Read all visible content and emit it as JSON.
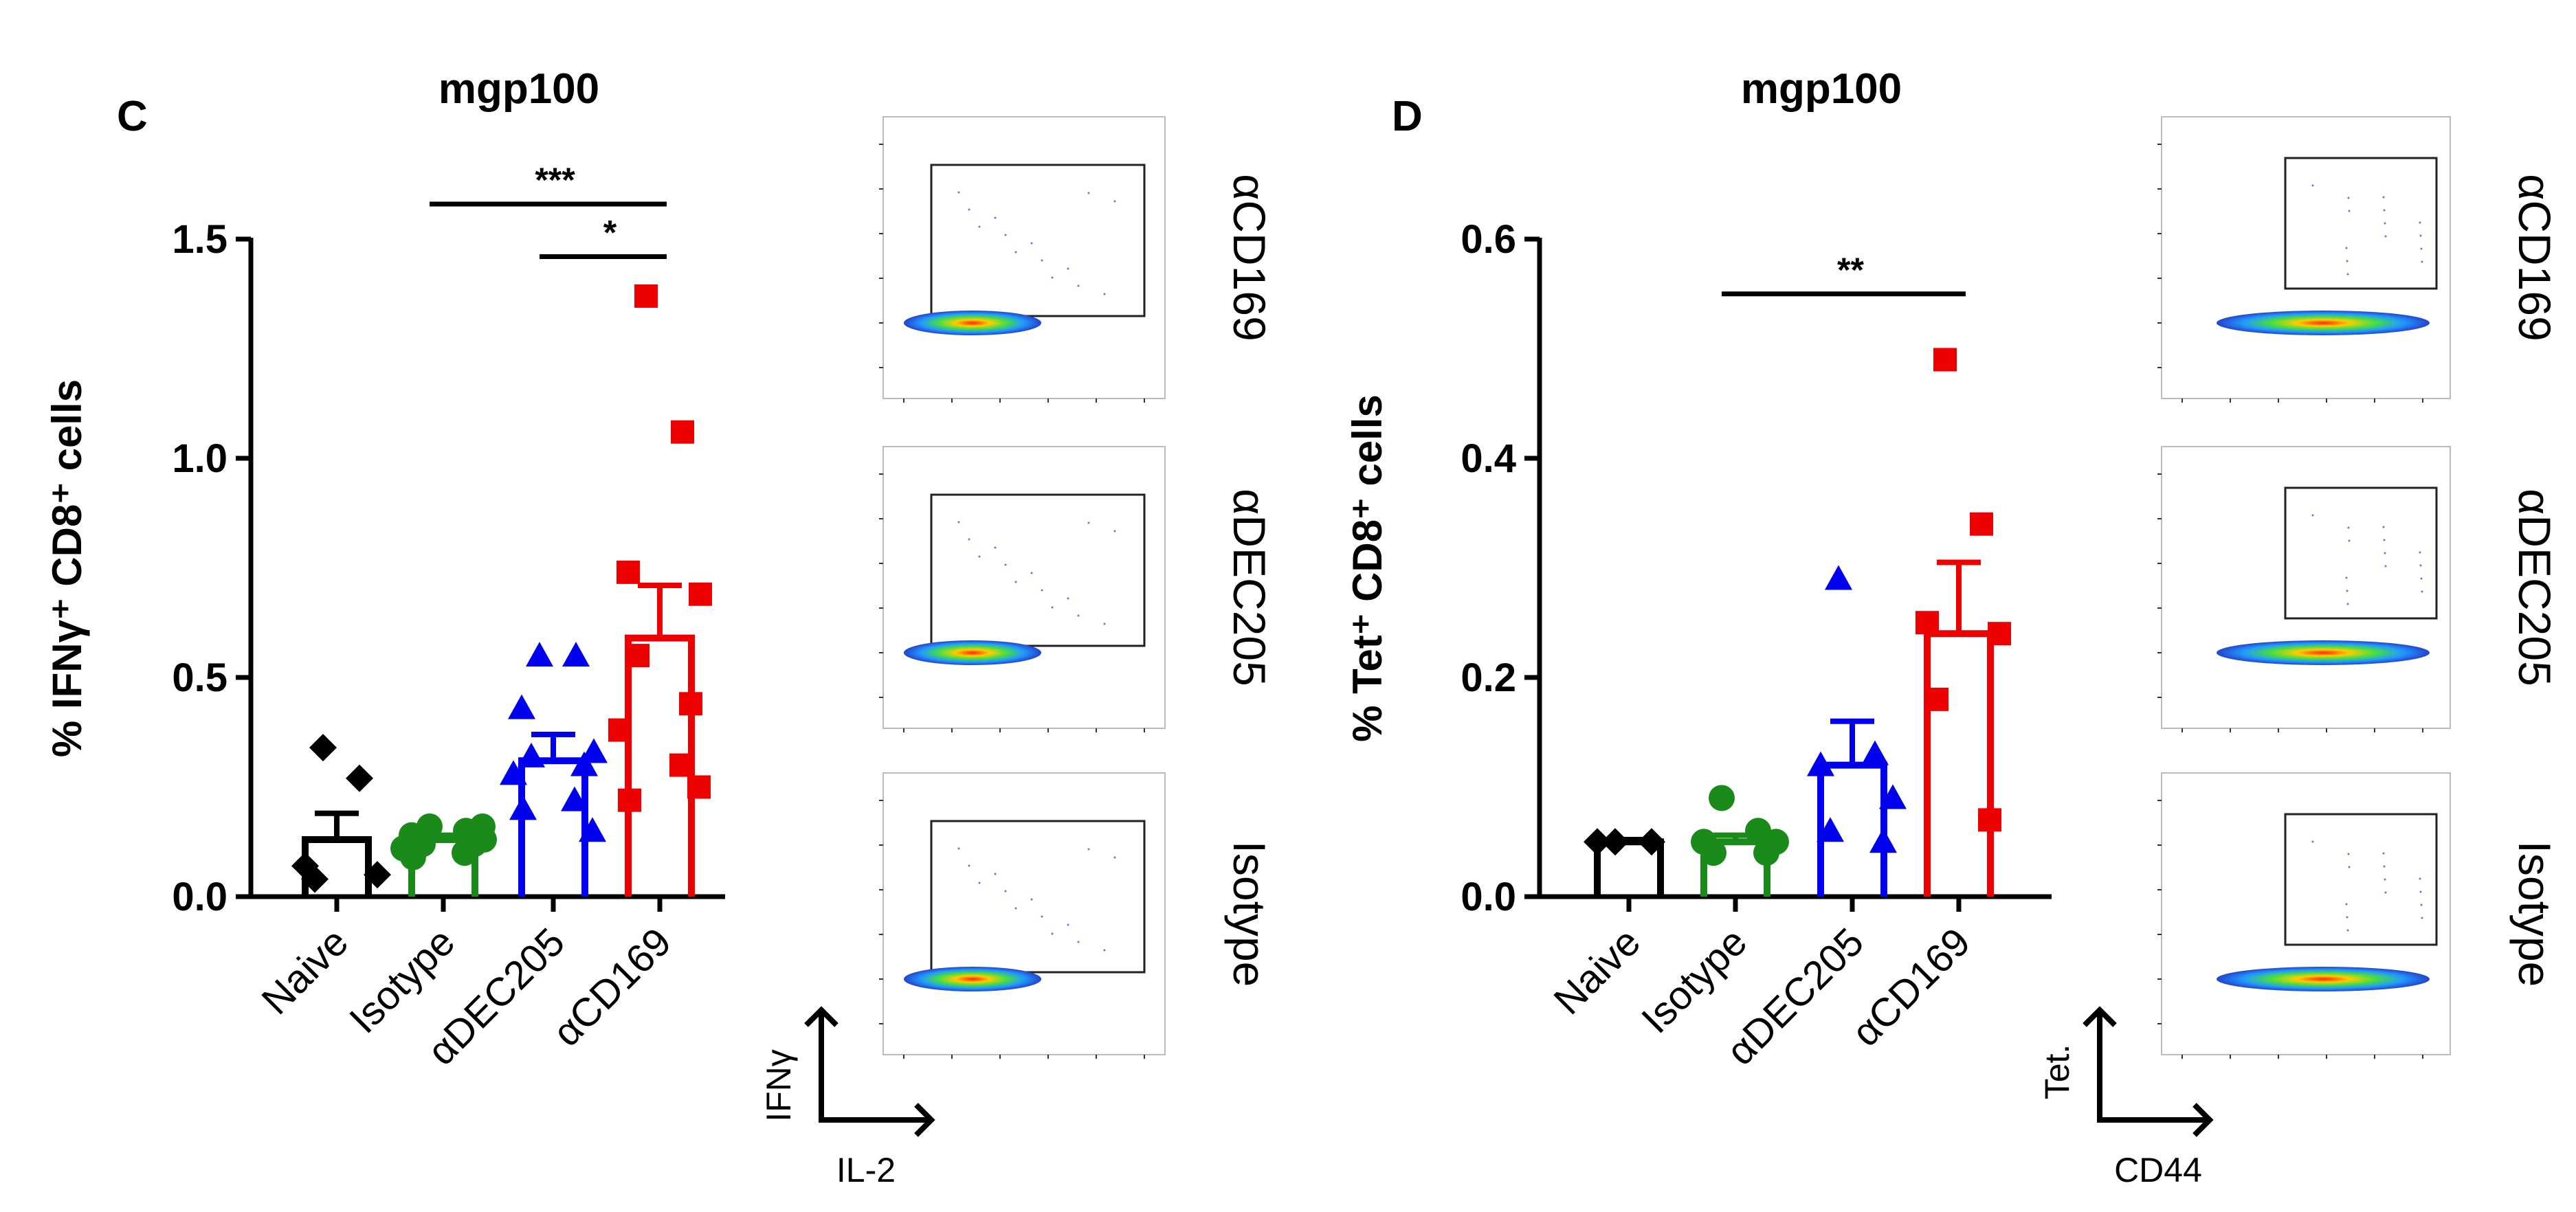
{
  "chart_data": [
    {
      "panel": "C",
      "type": "bar",
      "title": "mgp100",
      "ylabel": "% IFNγ⁺ CD8⁺ cells",
      "xlabel": "",
      "ylim": [
        0,
        1.5
      ],
      "yticks": [
        "0.0",
        "0.5",
        "1.0",
        "1.5"
      ],
      "categories": [
        "Naive",
        "Isotype",
        "αDEC205",
        "αCD169"
      ],
      "colors": [
        "#000000",
        "#1a8a1a",
        "#0000ee",
        "#ee0000"
      ],
      "markers": [
        "diamond",
        "circle",
        "triangle",
        "square"
      ],
      "means": [
        0.13,
        0.13,
        0.31,
        0.59
      ],
      "sem": [
        0.06,
        0.01,
        0.06,
        0.12
      ],
      "points": [
        [
          0.34,
          0.27,
          0.07,
          0.05,
          0.04
        ],
        [
          0.16,
          0.15,
          0.14,
          0.13,
          0.12,
          0.12,
          0.11,
          0.1,
          0.09,
          0.16,
          0.12
        ],
        [
          0.55,
          0.55,
          0.43,
          0.33,
          0.32,
          0.3,
          0.28,
          0.22,
          0.2,
          0.15
        ],
        [
          1.37,
          1.06,
          0.74,
          0.69,
          0.55,
          0.44,
          0.38,
          0.3,
          0.22,
          0.25
        ]
      ],
      "significance": [
        {
          "from": 1,
          "to": 3,
          "label": "***",
          "y": 1.58
        },
        {
          "from": 2,
          "to": 3,
          "label": "*",
          "y": 1.46
        }
      ],
      "flow": {
        "panels": [
          "αCD169",
          "αDEC205",
          "Isotype"
        ],
        "x_axis": "IL-2",
        "y_axis": "IFNγ"
      }
    },
    {
      "panel": "D",
      "type": "bar",
      "title": "mgp100",
      "ylabel": "% Tet⁺ CD8⁺ cells",
      "xlabel": "",
      "ylim": [
        0,
        0.6
      ],
      "yticks": [
        "0.0",
        "0.2",
        "0.4",
        "0.6"
      ],
      "categories": [
        "Naive",
        "Isotype",
        "αDEC205",
        "αCD169"
      ],
      "colors": [
        "#000000",
        "#1a8a1a",
        "#0000ee",
        "#ee0000"
      ],
      "markers": [
        "diamond",
        "circle",
        "triangle",
        "square"
      ],
      "means": [
        0.05,
        0.05,
        0.12,
        0.24
      ],
      "sem": [
        0.002,
        0.006,
        0.04,
        0.065
      ],
      "points": [
        [
          0.05,
          0.05,
          0.05
        ],
        [
          0.09,
          0.06,
          0.05,
          0.05,
          0.04,
          0.04
        ],
        [
          0.29,
          0.13,
          0.12,
          0.09,
          0.06,
          0.05
        ],
        [
          0.49,
          0.34,
          0.25,
          0.24,
          0.18,
          0.07
        ]
      ],
      "significance": [
        {
          "from": 1,
          "to": 3,
          "label": "**",
          "y": 0.55
        }
      ],
      "flow": {
        "panels": [
          "αCD169",
          "αDEC205",
          "Isotype"
        ],
        "x_axis": "CD44",
        "y_axis": "Tet."
      }
    }
  ]
}
